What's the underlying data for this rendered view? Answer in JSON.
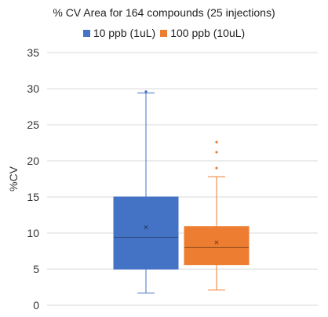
{
  "chart_data": {
    "type": "box",
    "title": "% CV Area for 164 compounds (25 injections)",
    "ylabel": "%CV",
    "xlabel": "",
    "ylim": [
      0,
      35
    ],
    "yticks": [
      0,
      5,
      10,
      15,
      20,
      25,
      30,
      35
    ],
    "grid": true,
    "legend_position": "top",
    "series": [
      {
        "name": "10 ppb (1uL)",
        "color": "#4472C4",
        "min": 1.7,
        "q1": 5.0,
        "median": 9.4,
        "q3": 15.0,
        "max": 29.4,
        "mean": 10.8,
        "outliers": [
          29.6
        ]
      },
      {
        "name": "100 ppb (10uL)",
        "color": "#ED7D31",
        "min": 2.1,
        "q1": 5.6,
        "median": 8.0,
        "q3": 10.9,
        "max": 17.8,
        "mean": 8.7,
        "outliers": [
          19.0,
          21.2,
          22.6
        ]
      }
    ]
  }
}
